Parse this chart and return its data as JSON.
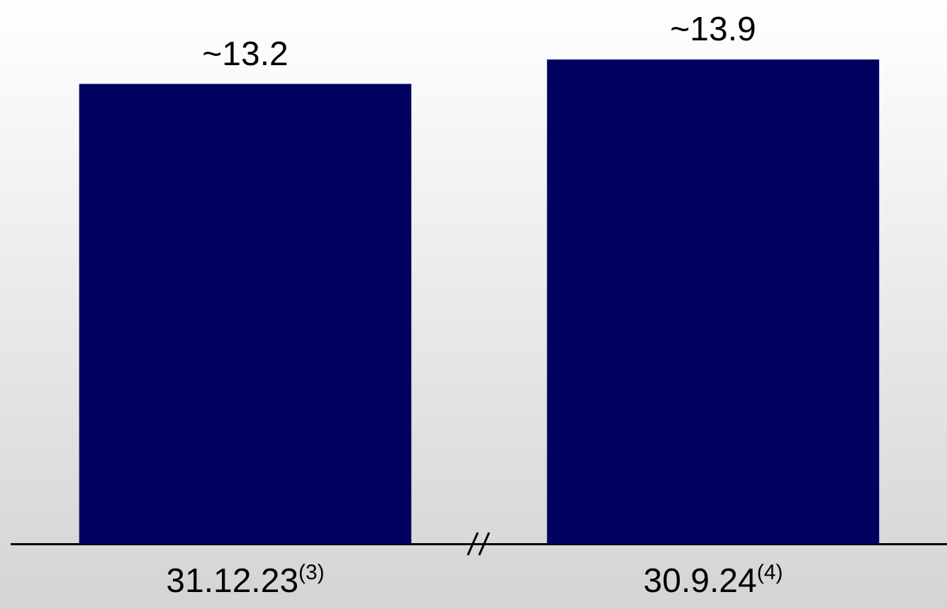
{
  "chart_data": {
    "type": "bar",
    "categories": [
      "31.12.23$^{(3)}$",
      "30.9.24$^{(4)}$"
    ],
    "values": [
      13.2,
      13.9
    ],
    "color": "#000060",
    "value_labels": [
      "~13.2",
      "~13.9"
    ],
    "grid": false,
    "legend": false
  }
}
